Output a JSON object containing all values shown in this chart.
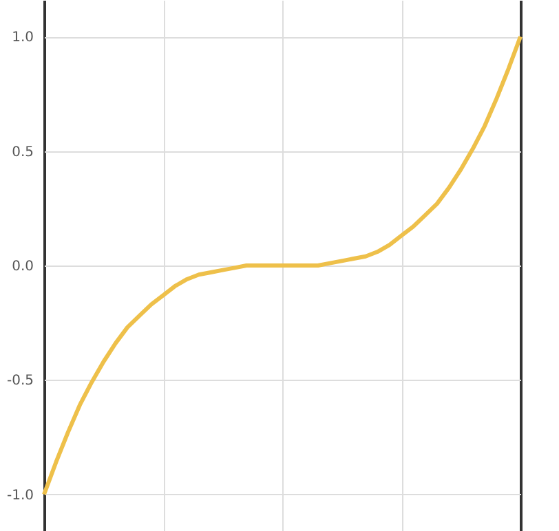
{
  "chart_data": {
    "type": "line",
    "categories": [
      null,
      null,
      null,
      null,
      null,
      null,
      null,
      null,
      null,
      null,
      null,
      null,
      null,
      null,
      null,
      null,
      null,
      null,
      null,
      null,
      null,
      null,
      null,
      null,
      null,
      null,
      null,
      null,
      null,
      null,
      null,
      null,
      null,
      null,
      null,
      null,
      null,
      null,
      null,
      null,
      null
    ],
    "series": [
      {
        "color": "#eec04a",
        "values": [
          -1,
          -0.86,
          -0.73,
          -0.61,
          -0.51,
          -0.42,
          -0.34,
          -0.27,
          -0.22,
          -0.17,
          -0.13,
          -0.09,
          -0.06,
          -0.04,
          -0.03,
          -0.02,
          -0.01,
          0,
          0,
          0,
          0,
          0,
          0,
          0,
          0.01,
          0.02,
          0.03,
          0.04,
          0.06,
          0.09,
          0.13,
          0.17,
          0.22,
          0.27,
          0.34,
          0.42,
          0.51,
          0.61,
          0.73,
          0.86,
          1
        ]
      }
    ],
    "ylim": [
      -1.16,
      1.16
    ],
    "yticks": [
      {
        "value": -1,
        "label": "-1.0"
      },
      {
        "value": -0.5,
        "label": "-0.5"
      },
      {
        "value": 0,
        "label": "0.0"
      },
      {
        "value": 0.5,
        "label": "0.5"
      },
      {
        "value": 1,
        "label": "1.0"
      }
    ],
    "tick_labels": "y",
    "grid": true,
    "legend": false,
    "marker": "none",
    "line_style": "solid"
  }
}
